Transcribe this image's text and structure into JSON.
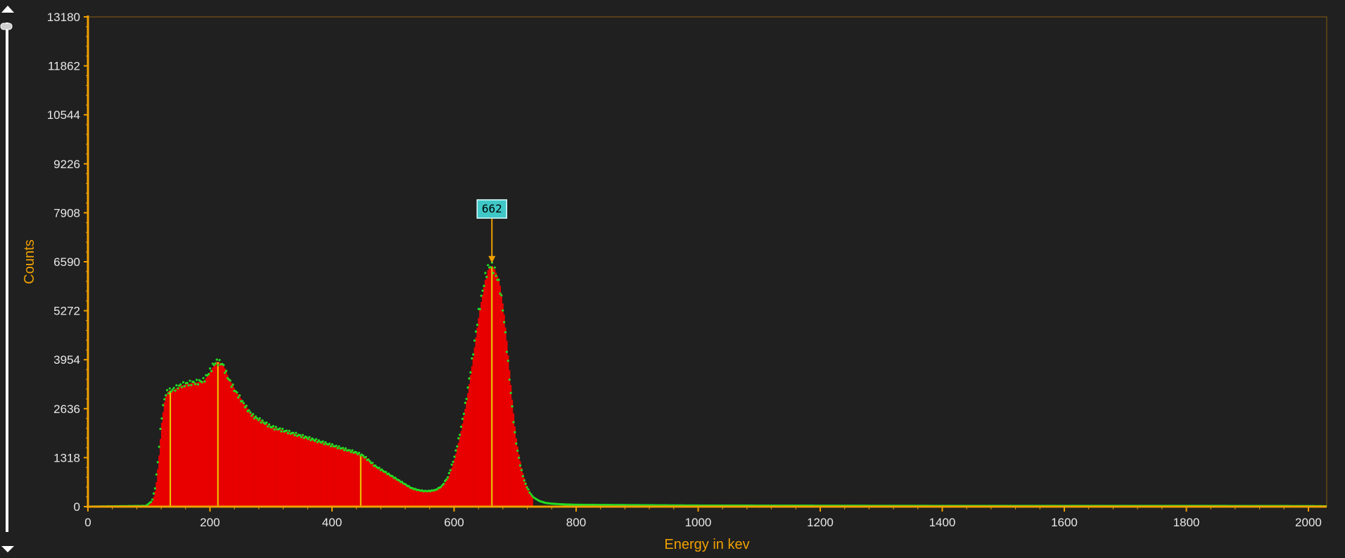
{
  "chart_data": {
    "type": "bar",
    "title": "",
    "xlabel": "Energy in kev",
    "ylabel": "Counts",
    "xlim": [
      0,
      2030
    ],
    "ylim": [
      0,
      13180
    ],
    "x_ticks": [
      "0",
      "200",
      "400",
      "600",
      "800",
      "1000",
      "1200",
      "1400",
      "1600",
      "1800",
      "2000"
    ],
    "y_ticks": [
      "0",
      "1318",
      "2636",
      "3954",
      "5272",
      "6590",
      "7908",
      "9226",
      "10544",
      "11862",
      "13180"
    ],
    "grid": false,
    "colors": {
      "background": "#202020",
      "bars": "#e80000",
      "curve": "#22dd22",
      "axis": "#f0a000",
      "marker": "#e8d000",
      "peak_label_bg": "#40c8c8"
    },
    "spectrum": {
      "x": [
        0,
        95,
        105,
        110,
        115,
        120,
        125,
        130,
        140,
        150,
        160,
        170,
        180,
        190,
        200,
        205,
        210,
        215,
        220,
        225,
        230,
        240,
        250,
        260,
        270,
        280,
        290,
        300,
        320,
        340,
        360,
        380,
        400,
        420,
        430,
        440,
        450,
        460,
        470,
        480,
        490,
        500,
        510,
        520,
        530,
        540,
        550,
        560,
        570,
        580,
        590,
        600,
        610,
        620,
        630,
        640,
        650,
        655,
        660,
        665,
        670,
        675,
        680,
        685,
        690,
        695,
        700,
        705,
        710,
        715,
        720,
        725,
        730,
        740,
        750,
        760,
        780,
        800,
        900,
        1000,
        1200,
        1400,
        1600,
        1800,
        2000,
        2030
      ],
      "y": [
        0,
        20,
        150,
        500,
        1300,
        2300,
        2900,
        3100,
        3150,
        3250,
        3300,
        3330,
        3350,
        3400,
        3650,
        3800,
        3900,
        3880,
        3850,
        3650,
        3450,
        3150,
        2900,
        2650,
        2450,
        2350,
        2250,
        2150,
        2050,
        1950,
        1850,
        1750,
        1650,
        1550,
        1500,
        1450,
        1380,
        1250,
        1100,
        1000,
        900,
        800,
        700,
        600,
        500,
        450,
        420,
        420,
        450,
        550,
        800,
        1300,
        2000,
        2900,
        4000,
        5200,
        6100,
        6400,
        6500,
        6400,
        6200,
        5900,
        5300,
        4500,
        3600,
        2700,
        1900,
        1400,
        1000,
        700,
        500,
        350,
        250,
        150,
        100,
        80,
        60,
        50,
        40,
        30,
        25,
        20,
        20,
        20,
        15,
        10
      ]
    },
    "markers": [
      135,
      213,
      447,
      662
    ],
    "peak_label": "662",
    "peak_energy": 662,
    "peak_counts": 6500
  },
  "scrollbar": {
    "up_icon": "triangle-up-icon",
    "down_icon": "triangle-down-icon"
  }
}
